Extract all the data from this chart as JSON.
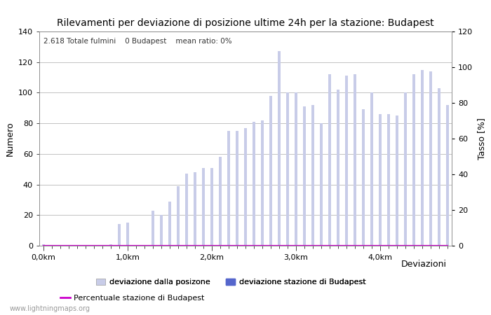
{
  "title": "Rilevamenti per deviazione di posizione ultime 24h per la stazione: Budapest",
  "subtitle": "2.618 Totale fulmini    0 Budapest    mean ratio: 0%",
  "xlabel": "Deviazioni",
  "ylabel_left": "Numero",
  "ylabel_right": "Tasso [%]",
  "watermark": "www.lightningmaps.org",
  "ylim_left": [
    0,
    140
  ],
  "ylim_right": [
    0,
    120
  ],
  "yticks_left": [
    0,
    20,
    40,
    60,
    80,
    100,
    120,
    140
  ],
  "yticks_right": [
    0,
    20,
    40,
    60,
    80,
    100,
    120
  ],
  "xtick_labels": [
    "0,0km",
    "1,0km",
    "2,0km",
    "3,0km",
    "4,0km"
  ],
  "xtick_positions": [
    0,
    10,
    20,
    30,
    40
  ],
  "bar_color_light": "#c8cce8",
  "bar_color_dark": "#5566cc",
  "line_color": "#cc00cc",
  "background_color": "#ffffff",
  "grid_color": "#aaaaaa",
  "bar_values": [
    1,
    0,
    0,
    0,
    0,
    0,
    0,
    0,
    1,
    14,
    15,
    0,
    0,
    23,
    20,
    29,
    39,
    47,
    48,
    51,
    51,
    58,
    75,
    75,
    77,
    81,
    82,
    98,
    127,
    100,
    100,
    91,
    92,
    80,
    112,
    102,
    111,
    112,
    89,
    100,
    86,
    86,
    85,
    100,
    112,
    115,
    114,
    103,
    92
  ],
  "dark_bar_values": [
    0,
    0,
    0,
    0,
    0,
    0,
    0,
    0,
    0,
    0,
    0,
    0,
    0,
    0,
    0,
    0,
    0,
    0,
    0,
    0,
    0,
    0,
    0,
    0,
    0,
    0,
    0,
    0,
    0,
    0,
    0,
    0,
    0,
    0,
    0,
    0,
    0,
    0,
    0,
    0,
    0,
    0,
    0,
    0,
    0,
    0,
    0,
    0,
    0
  ],
  "line_values": [
    0,
    0,
    0,
    0,
    0,
    0,
    0,
    0,
    0,
    0,
    0,
    0,
    0,
    0,
    0,
    0,
    0,
    0,
    0,
    0,
    0,
    0,
    0,
    0,
    0,
    0,
    0,
    0,
    0,
    0,
    0,
    0,
    0,
    0,
    0,
    0,
    0,
    0,
    0,
    0,
    0,
    0,
    0,
    0,
    0,
    0,
    0,
    0,
    0
  ],
  "n_bars": 49
}
